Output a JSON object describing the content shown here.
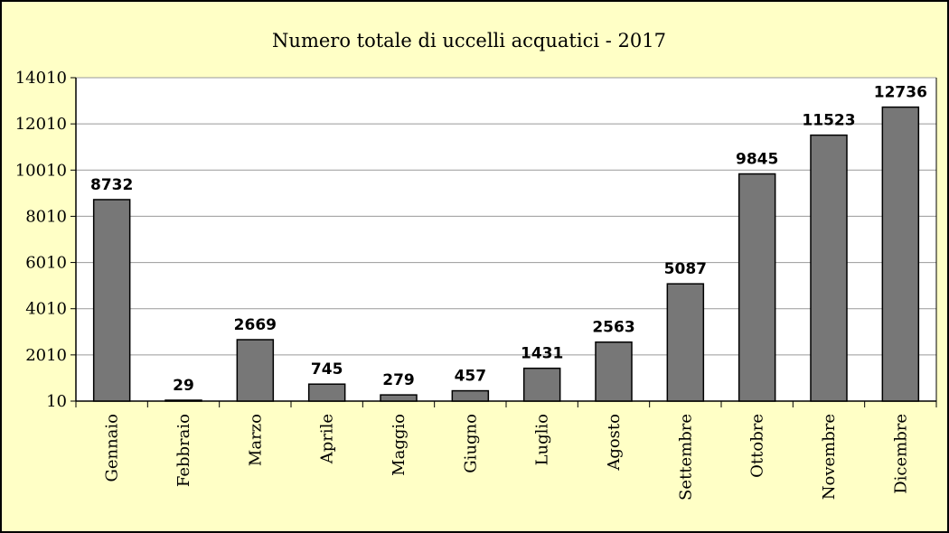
{
  "chart_data": {
    "type": "bar",
    "title": "Numero totale di uccelli acquatici - 2017",
    "categories": [
      "Gennaio",
      "Febbraio",
      "Marzo",
      "Aprile",
      "Maggio",
      "Giugno",
      "Luglio",
      "Agosto",
      "Settembre",
      "Ottobre",
      "Novembre",
      "Dicembre"
    ],
    "values": [
      8732,
      29,
      2669,
      745,
      279,
      457,
      1431,
      2563,
      5087,
      9845,
      11523,
      12736
    ],
    "yticks": [
      10,
      2010,
      4010,
      6010,
      8010,
      10010,
      12010,
      14010
    ],
    "ylim": [
      10,
      14010
    ],
    "xlabel": "",
    "ylabel": "",
    "grid": true,
    "colors": {
      "bar": "#777777",
      "background": "#ffffc6",
      "plot_background": "#ffffff",
      "grid": "#999999"
    }
  }
}
